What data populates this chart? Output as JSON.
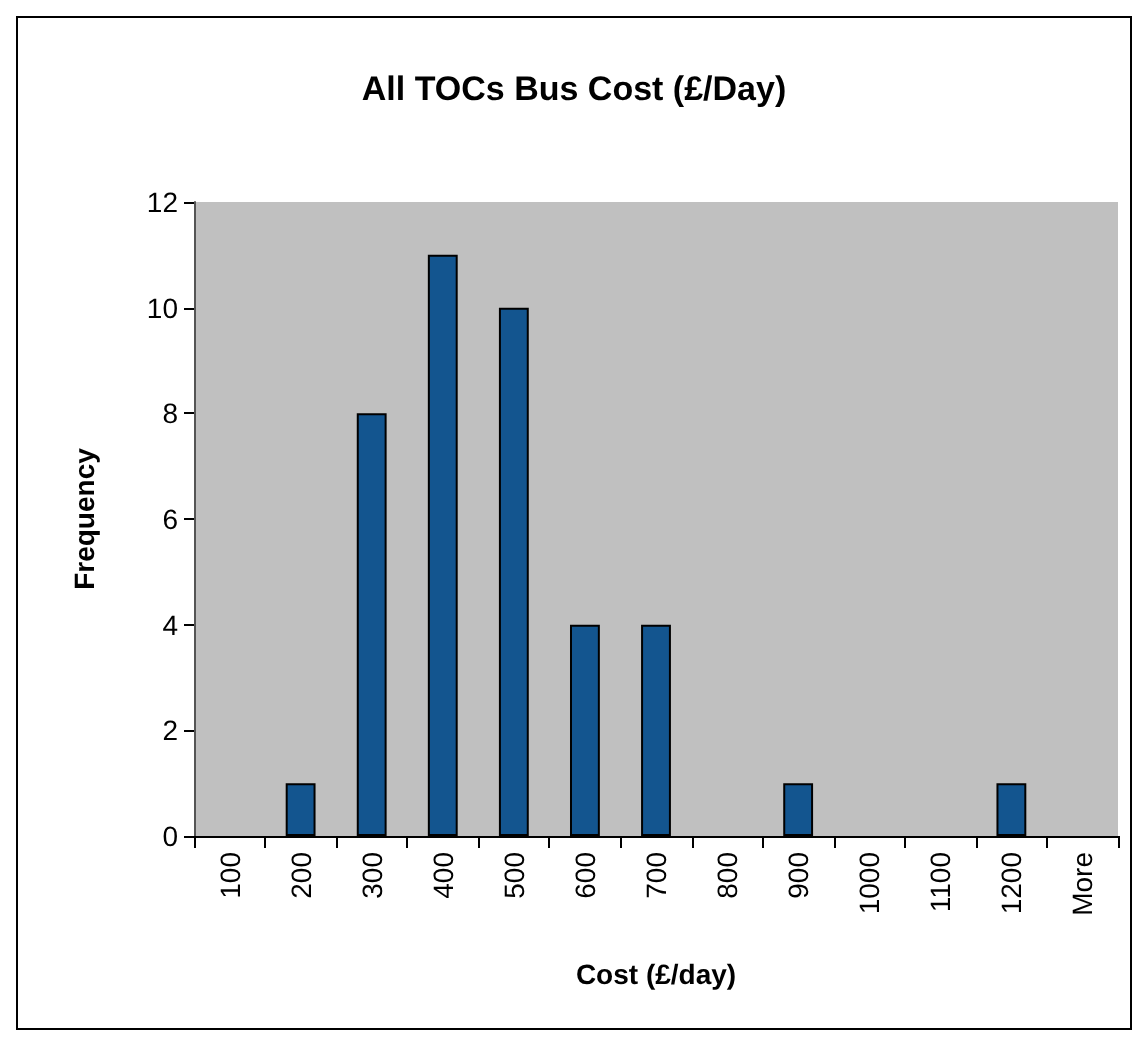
{
  "chart_data": {
    "type": "bar",
    "title": "All TOCs Bus Cost (£/Day)",
    "xlabel": "Cost (£/day)",
    "ylabel": "Frequency",
    "categories": [
      "100",
      "200",
      "300",
      "400",
      "500",
      "600",
      "700",
      "800",
      "900",
      "1000",
      "1100",
      "1200",
      "More"
    ],
    "values": [
      0,
      1,
      8,
      11,
      10,
      4,
      4,
      0,
      1,
      0,
      0,
      1,
      0
    ],
    "color": "#13558f",
    "ylim": [
      0,
      12
    ],
    "yticks": [
      0,
      2,
      4,
      6,
      8,
      10,
      12
    ],
    "grid": false
  }
}
